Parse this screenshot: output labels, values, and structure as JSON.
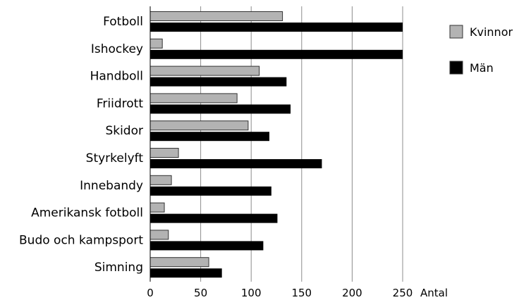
{
  "chart_data": {
    "type": "bar",
    "orientation": "horizontal",
    "title": "",
    "xlabel": "Antal",
    "ylabel": "",
    "xlim": [
      0,
      250
    ],
    "xticks": [
      0,
      50,
      100,
      150,
      200,
      250
    ],
    "grid": "vertical",
    "legend_position": "right",
    "categories": [
      "Fotboll",
      "Ishockey",
      "Handboll",
      "Friidrott",
      "Skidor",
      "Styrkelyft",
      "Innebandy",
      "Amerikansk fotboll",
      "Budo och kampsport",
      "Simning"
    ],
    "series": [
      {
        "name": "Kvinnor",
        "color": "#b3b3b3",
        "values": [
          131,
          12,
          108,
          86,
          97,
          28,
          21,
          14,
          18,
          58
        ]
      },
      {
        "name": "Män",
        "color": "#000000",
        "values": [
          250,
          250,
          135,
          139,
          118,
          170,
          120,
          126,
          112,
          71
        ]
      }
    ]
  }
}
